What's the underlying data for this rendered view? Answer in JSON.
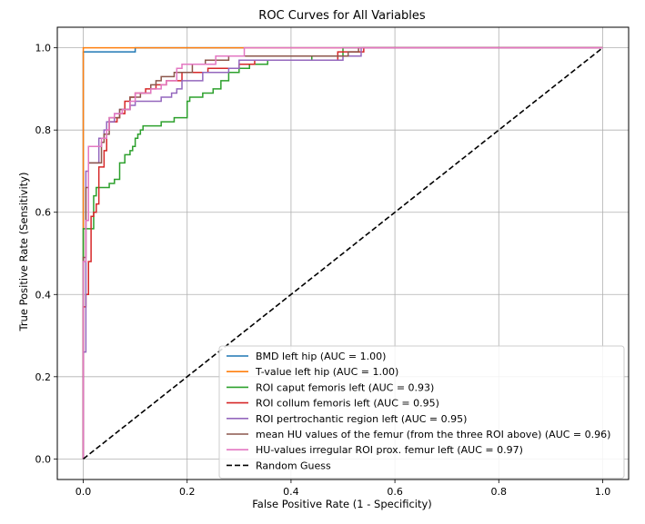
{
  "chart_data": {
    "type": "line",
    "title": "ROC Curves for All Variables",
    "xlabel": "False Positive Rate (1 - Specificity)",
    "ylabel": "True Positive Rate (Sensitivity)",
    "xlim": [
      -0.05,
      1.05
    ],
    "ylim": [
      -0.05,
      1.05
    ],
    "xticks": [
      0.0,
      0.2,
      0.4,
      0.6,
      0.8,
      1.0
    ],
    "yticks": [
      0.0,
      0.2,
      0.4,
      0.6,
      0.8,
      1.0
    ],
    "xtick_labels": [
      "0.0",
      "0.2",
      "0.4",
      "0.6",
      "0.8",
      "1.0"
    ],
    "ytick_labels": [
      "0.0",
      "0.2",
      "0.4",
      "0.6",
      "0.8",
      "1.0"
    ],
    "grid": true,
    "legend_position": "lower-right",
    "series": [
      {
        "name": "BMD left hip (AUC = 1.00)",
        "color": "#1f77b4",
        "dash": "solid",
        "points": [
          [
            0,
            0
          ],
          [
            0,
            0.99
          ],
          [
            0.1,
            0.99
          ],
          [
            0.1,
            1.0
          ],
          [
            1.0,
            1.0
          ]
        ]
      },
      {
        "name": "T-value left hip (AUC = 1.00)",
        "color": "#ff7f0e",
        "dash": "solid",
        "points": [
          [
            0,
            0
          ],
          [
            0,
            1.0
          ],
          [
            1.0,
            1.0
          ]
        ]
      },
      {
        "name": "ROI caput femoris left (AUC = 0.93)",
        "color": "#2ca02c",
        "dash": "solid",
        "points": [
          [
            0,
            0
          ],
          [
            0,
            0.56
          ],
          [
            0.02,
            0.56
          ],
          [
            0.02,
            0.64
          ],
          [
            0.025,
            0.64
          ],
          [
            0.025,
            0.66
          ],
          [
            0.05,
            0.66
          ],
          [
            0.05,
            0.67
          ],
          [
            0.06,
            0.67
          ],
          [
            0.06,
            0.68
          ],
          [
            0.07,
            0.68
          ],
          [
            0.07,
            0.72
          ],
          [
            0.08,
            0.72
          ],
          [
            0.08,
            0.74
          ],
          [
            0.09,
            0.74
          ],
          [
            0.09,
            0.75
          ],
          [
            0.095,
            0.75
          ],
          [
            0.095,
            0.76
          ],
          [
            0.1,
            0.76
          ],
          [
            0.1,
            0.78
          ],
          [
            0.105,
            0.78
          ],
          [
            0.105,
            0.79
          ],
          [
            0.11,
            0.79
          ],
          [
            0.11,
            0.8
          ],
          [
            0.115,
            0.8
          ],
          [
            0.115,
            0.81
          ],
          [
            0.15,
            0.81
          ],
          [
            0.15,
            0.82
          ],
          [
            0.175,
            0.82
          ],
          [
            0.175,
            0.83
          ],
          [
            0.2,
            0.83
          ],
          [
            0.2,
            0.87
          ],
          [
            0.205,
            0.87
          ],
          [
            0.205,
            0.88
          ],
          [
            0.23,
            0.88
          ],
          [
            0.23,
            0.89
          ],
          [
            0.25,
            0.89
          ],
          [
            0.25,
            0.9
          ],
          [
            0.265,
            0.9
          ],
          [
            0.265,
            0.92
          ],
          [
            0.28,
            0.92
          ],
          [
            0.28,
            0.94
          ],
          [
            0.3,
            0.94
          ],
          [
            0.3,
            0.95
          ],
          [
            0.32,
            0.95
          ],
          [
            0.32,
            0.96
          ],
          [
            0.355,
            0.96
          ],
          [
            0.355,
            0.97
          ],
          [
            0.44,
            0.97
          ],
          [
            0.44,
            0.98
          ],
          [
            0.5,
            0.98
          ],
          [
            0.5,
            1.0
          ],
          [
            1.0,
            1.0
          ]
        ]
      },
      {
        "name": "ROI collum femoris left (AUC = 0.95)",
        "color": "#d62728",
        "dash": "solid",
        "points": [
          [
            0,
            0
          ],
          [
            0,
            0.37
          ],
          [
            0.005,
            0.37
          ],
          [
            0.005,
            0.4
          ],
          [
            0.01,
            0.4
          ],
          [
            0.01,
            0.48
          ],
          [
            0.015,
            0.48
          ],
          [
            0.015,
            0.59
          ],
          [
            0.02,
            0.59
          ],
          [
            0.02,
            0.6
          ],
          [
            0.025,
            0.6
          ],
          [
            0.025,
            0.62
          ],
          [
            0.03,
            0.62
          ],
          [
            0.03,
            0.71
          ],
          [
            0.04,
            0.71
          ],
          [
            0.04,
            0.75
          ],
          [
            0.045,
            0.75
          ],
          [
            0.045,
            0.8
          ],
          [
            0.05,
            0.8
          ],
          [
            0.05,
            0.82
          ],
          [
            0.065,
            0.82
          ],
          [
            0.065,
            0.83
          ],
          [
            0.07,
            0.83
          ],
          [
            0.07,
            0.84
          ],
          [
            0.08,
            0.84
          ],
          [
            0.08,
            0.87
          ],
          [
            0.09,
            0.87
          ],
          [
            0.09,
            0.88
          ],
          [
            0.1,
            0.88
          ],
          [
            0.1,
            0.89
          ],
          [
            0.12,
            0.89
          ],
          [
            0.12,
            0.9
          ],
          [
            0.14,
            0.9
          ],
          [
            0.14,
            0.91
          ],
          [
            0.16,
            0.91
          ],
          [
            0.16,
            0.92
          ],
          [
            0.19,
            0.92
          ],
          [
            0.19,
            0.94
          ],
          [
            0.24,
            0.94
          ],
          [
            0.24,
            0.95
          ],
          [
            0.3,
            0.95
          ],
          [
            0.3,
            0.96
          ],
          [
            0.33,
            0.96
          ],
          [
            0.33,
            0.97
          ],
          [
            0.49,
            0.97
          ],
          [
            0.49,
            0.99
          ],
          [
            0.54,
            0.99
          ],
          [
            0.54,
            1.0
          ],
          [
            1.0,
            1.0
          ]
        ]
      },
      {
        "name": "ROI pertrochantic region left (AUC = 0.95)",
        "color": "#9467bd",
        "dash": "solid",
        "points": [
          [
            0,
            0
          ],
          [
            0,
            0.26
          ],
          [
            0.005,
            0.26
          ],
          [
            0.005,
            0.7
          ],
          [
            0.01,
            0.7
          ],
          [
            0.01,
            0.72
          ],
          [
            0.03,
            0.72
          ],
          [
            0.03,
            0.78
          ],
          [
            0.04,
            0.78
          ],
          [
            0.04,
            0.8
          ],
          [
            0.045,
            0.8
          ],
          [
            0.045,
            0.82
          ],
          [
            0.06,
            0.82
          ],
          [
            0.06,
            0.84
          ],
          [
            0.07,
            0.84
          ],
          [
            0.07,
            0.85
          ],
          [
            0.09,
            0.85
          ],
          [
            0.09,
            0.86
          ],
          [
            0.1,
            0.86
          ],
          [
            0.1,
            0.87
          ],
          [
            0.15,
            0.87
          ],
          [
            0.15,
            0.88
          ],
          [
            0.17,
            0.88
          ],
          [
            0.17,
            0.89
          ],
          [
            0.18,
            0.89
          ],
          [
            0.18,
            0.9
          ],
          [
            0.19,
            0.9
          ],
          [
            0.19,
            0.92
          ],
          [
            0.23,
            0.92
          ],
          [
            0.23,
            0.94
          ],
          [
            0.28,
            0.94
          ],
          [
            0.28,
            0.95
          ],
          [
            0.3,
            0.95
          ],
          [
            0.3,
            0.97
          ],
          [
            0.5,
            0.97
          ],
          [
            0.5,
            0.98
          ],
          [
            0.535,
            0.98
          ],
          [
            0.535,
            1.0
          ],
          [
            1.0,
            1.0
          ]
        ]
      },
      {
        "name": "mean HU values of the femur (from the three ROI above) (AUC = 0.96)",
        "color": "#8c564b",
        "dash": "solid",
        "points": [
          [
            0,
            0
          ],
          [
            0,
            0.49
          ],
          [
            0.005,
            0.49
          ],
          [
            0.005,
            0.66
          ],
          [
            0.01,
            0.66
          ],
          [
            0.01,
            0.72
          ],
          [
            0.035,
            0.72
          ],
          [
            0.035,
            0.77
          ],
          [
            0.04,
            0.77
          ],
          [
            0.04,
            0.79
          ],
          [
            0.05,
            0.79
          ],
          [
            0.05,
            0.83
          ],
          [
            0.07,
            0.83
          ],
          [
            0.07,
            0.85
          ],
          [
            0.09,
            0.85
          ],
          [
            0.09,
            0.88
          ],
          [
            0.11,
            0.88
          ],
          [
            0.11,
            0.89
          ],
          [
            0.13,
            0.89
          ],
          [
            0.13,
            0.91
          ],
          [
            0.14,
            0.91
          ],
          [
            0.14,
            0.92
          ],
          [
            0.15,
            0.92
          ],
          [
            0.15,
            0.93
          ],
          [
            0.175,
            0.93
          ],
          [
            0.175,
            0.94
          ],
          [
            0.21,
            0.94
          ],
          [
            0.21,
            0.96
          ],
          [
            0.235,
            0.96
          ],
          [
            0.235,
            0.97
          ],
          [
            0.28,
            0.97
          ],
          [
            0.28,
            0.98
          ],
          [
            0.51,
            0.98
          ],
          [
            0.51,
            0.99
          ],
          [
            0.53,
            0.99
          ],
          [
            0.53,
            1.0
          ],
          [
            1.0,
            1.0
          ]
        ]
      },
      {
        "name": "HU-values irregular ROI prox. femur left (AUC = 0.97)",
        "color": "#e377c2",
        "dash": "solid",
        "points": [
          [
            0,
            0
          ],
          [
            0,
            0.48
          ],
          [
            0.005,
            0.48
          ],
          [
            0.005,
            0.58
          ],
          [
            0.01,
            0.58
          ],
          [
            0.01,
            0.76
          ],
          [
            0.035,
            0.76
          ],
          [
            0.035,
            0.78
          ],
          [
            0.045,
            0.78
          ],
          [
            0.045,
            0.8
          ],
          [
            0.05,
            0.8
          ],
          [
            0.05,
            0.83
          ],
          [
            0.06,
            0.83
          ],
          [
            0.06,
            0.84
          ],
          [
            0.075,
            0.84
          ],
          [
            0.075,
            0.85
          ],
          [
            0.09,
            0.85
          ],
          [
            0.09,
            0.87
          ],
          [
            0.1,
            0.87
          ],
          [
            0.1,
            0.89
          ],
          [
            0.13,
            0.89
          ],
          [
            0.13,
            0.9
          ],
          [
            0.15,
            0.9
          ],
          [
            0.15,
            0.91
          ],
          [
            0.16,
            0.91
          ],
          [
            0.16,
            0.92
          ],
          [
            0.18,
            0.92
          ],
          [
            0.18,
            0.95
          ],
          [
            0.19,
            0.95
          ],
          [
            0.19,
            0.96
          ],
          [
            0.255,
            0.96
          ],
          [
            0.255,
            0.98
          ],
          [
            0.31,
            0.98
          ],
          [
            0.31,
            1.0
          ],
          [
            1.0,
            1.0
          ]
        ]
      },
      {
        "name": "Random Guess",
        "color": "#000000",
        "dash": "dashed",
        "points": [
          [
            0,
            0
          ],
          [
            1.0,
            1.0
          ]
        ]
      }
    ]
  }
}
